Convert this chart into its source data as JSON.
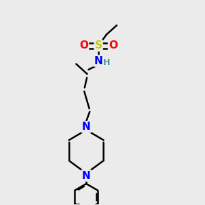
{
  "bg_color": "#ebebeb",
  "bond_color": "#000000",
  "atom_colors": {
    "S": "#cccc00",
    "O": "#ff0000",
    "N": "#0000ff",
    "H": "#4a9a8a",
    "C": "#000000"
  },
  "bond_width": 1.8,
  "figsize": [
    3.0,
    3.0
  ],
  "dpi": 100
}
